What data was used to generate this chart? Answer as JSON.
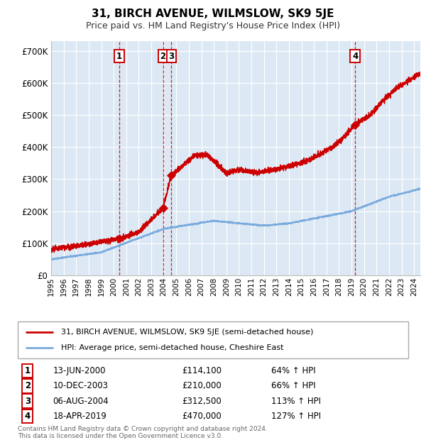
{
  "title": "31, BIRCH AVENUE, WILMSLOW, SK9 5JE",
  "subtitle": "Price paid vs. HM Land Registry's House Price Index (HPI)",
  "background_color": "#ffffff",
  "plot_bg_color": "#dce9f5",
  "grid_color": "#ffffff",
  "red_line_color": "#cc0000",
  "blue_line_color": "#7aaadd",
  "sale_marker_color": "#cc0000",
  "dashed_line_color": "#cc0000",
  "ylabel_ticks": [
    "£0",
    "£100K",
    "£200K",
    "£300K",
    "£400K",
    "£500K",
    "£600K",
    "£700K"
  ],
  "ytick_values": [
    0,
    100000,
    200000,
    300000,
    400000,
    500000,
    600000,
    700000
  ],
  "ylim": [
    0,
    730000
  ],
  "sales": [
    {
      "num": 1,
      "date_label": "13-JUN-2000",
      "date_x": 2000.45,
      "price": 114100,
      "pct": "64%"
    },
    {
      "num": 2,
      "date_label": "10-DEC-2003",
      "date_x": 2003.94,
      "price": 210000,
      "pct": "66%"
    },
    {
      "num": 3,
      "date_label": "06-AUG-2004",
      "date_x": 2004.6,
      "price": 312500,
      "pct": "113%"
    },
    {
      "num": 4,
      "date_label": "18-APR-2019",
      "date_x": 2019.29,
      "price": 470000,
      "pct": "127%"
    }
  ],
  "legend_entries": [
    "31, BIRCH AVENUE, WILMSLOW, SK9 5JE (semi-detached house)",
    "HPI: Average price, semi-detached house, Cheshire East"
  ],
  "footer_text": "Contains HM Land Registry data © Crown copyright and database right 2024.\nThis data is licensed under the Open Government Licence v3.0.",
  "xlim": [
    1995.0,
    2024.5
  ],
  "xtick_years": [
    1995,
    1996,
    1997,
    1998,
    1999,
    2000,
    2001,
    2002,
    2003,
    2004,
    2005,
    2006,
    2007,
    2008,
    2009,
    2010,
    2011,
    2012,
    2013,
    2014,
    2015,
    2016,
    2017,
    2018,
    2019,
    2020,
    2021,
    2022,
    2023,
    2024
  ],
  "table_data": [
    [
      "1",
      "13-JUN-2000",
      "£114,100",
      "64% ↑ HPI"
    ],
    [
      "2",
      "10-DEC-2003",
      "£210,000",
      "66% ↑ HPI"
    ],
    [
      "3",
      "06-AUG-2004",
      "£312,500",
      "113% ↑ HPI"
    ],
    [
      "4",
      "18-APR-2019",
      "£470,000",
      "127% ↑ HPI"
    ]
  ]
}
